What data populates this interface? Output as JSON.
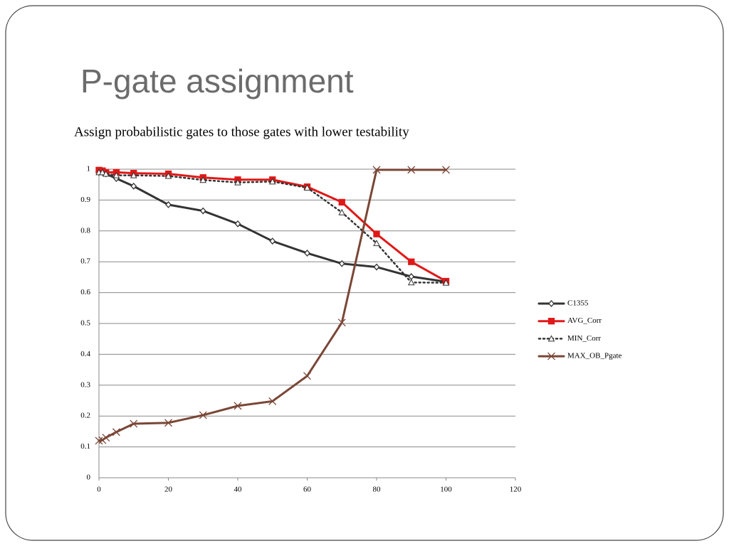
{
  "title": "P-gate assignment",
  "subtitle": "Assign probabilistic gates to those gates with lower testability",
  "chart_data": {
    "type": "line",
    "x": [
      0,
      1,
      2,
      5,
      10,
      20,
      30,
      40,
      50,
      60,
      70,
      80,
      90,
      100
    ],
    "series": [
      {
        "name": "C1355",
        "color": "#333333",
        "marker": "diamond",
        "style": "solid",
        "values": [
          0.99,
          0.99,
          0.985,
          0.97,
          0.945,
          0.885,
          0.865,
          0.823,
          0.767,
          0.728,
          0.694,
          0.683,
          0.652,
          0.635
        ]
      },
      {
        "name": "AVG_Corr",
        "color": "#e01818",
        "marker": "square",
        "style": "solid",
        "values": [
          0.997,
          0.995,
          0.99,
          0.99,
          0.987,
          0.985,
          0.973,
          0.966,
          0.966,
          0.943,
          0.893,
          0.79,
          0.7,
          0.637
        ]
      },
      {
        "name": "MIN_Corr",
        "color": "#333333",
        "marker": "triangle",
        "style": "dotted",
        "values": [
          0.99,
          0.99,
          0.985,
          0.98,
          0.98,
          0.978,
          0.965,
          0.957,
          0.96,
          0.94,
          0.86,
          0.76,
          0.633,
          0.632
        ]
      },
      {
        "name": "MAX_OB_Pgate",
        "color": "#7a4636",
        "marker": "x",
        "style": "solid",
        "values": [
          0.12,
          0.122,
          0.13,
          0.148,
          0.175,
          0.178,
          0.203,
          0.233,
          0.248,
          0.33,
          0.503,
          0.998,
          0.998,
          0.998
        ]
      }
    ],
    "xlim": [
      0,
      120
    ],
    "xticks": [
      0,
      20,
      40,
      60,
      80,
      100,
      120
    ],
    "ylim": [
      0,
      1
    ],
    "yticks": [
      0,
      0.1,
      0.2,
      0.3,
      0.4,
      0.5,
      0.6,
      0.7,
      0.8,
      0.9,
      1
    ],
    "grid": true,
    "legend": "right"
  }
}
